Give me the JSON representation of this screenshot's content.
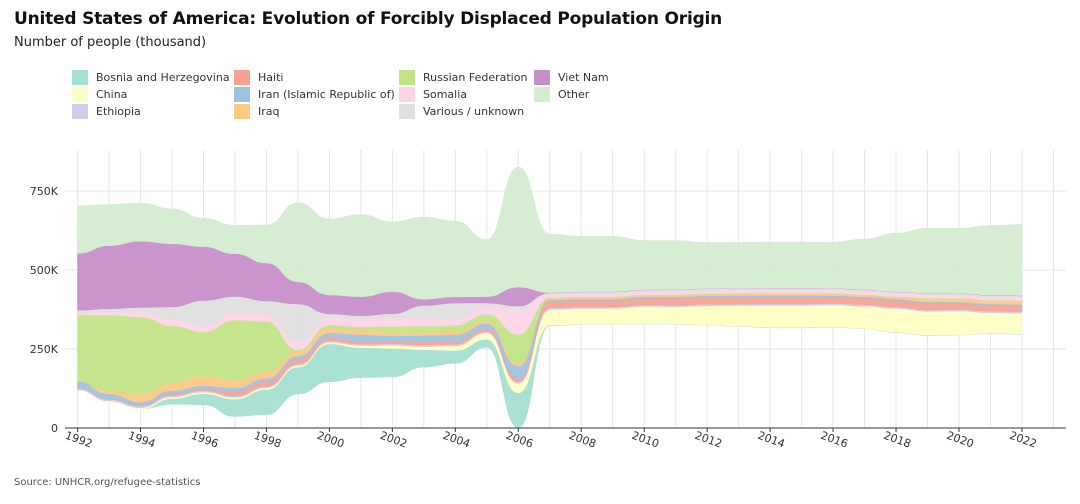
{
  "header": {
    "title": "United States of America:  Evolution of Forcibly Displaced Population Origin",
    "subtitle": "Number of people (thousand)"
  },
  "footer": {
    "source": "Source: UNHCR.org/refugee-statistics"
  },
  "chart_data": {
    "type": "area",
    "stacked": true,
    "streamgraph": true,
    "grid": true,
    "legend_position": "top",
    "x": [
      1992,
      1993,
      1994,
      1995,
      1996,
      1997,
      1998,
      1999,
      2000,
      2001,
      2002,
      2003,
      2004,
      2005,
      2006,
      2007,
      2008,
      2009,
      2010,
      2011,
      2012,
      2013,
      2014,
      2015,
      2016,
      2017,
      2018,
      2019,
      2020,
      2021,
      2022
    ],
    "x_tick_labels": [
      "1992",
      "1994",
      "1996",
      "1998",
      "2000",
      "2002",
      "2004",
      "2006",
      "2008",
      "2010",
      "2012",
      "2014",
      "2016",
      "2018",
      "2020",
      "2022"
    ],
    "y_tick_labels": [
      "0",
      "250K",
      "500K",
      "750K"
    ],
    "y_ticks": [
      0,
      250000,
      500000,
      750000
    ],
    "ylim": [
      0,
      880000
    ],
    "xlim": [
      1991.6,
      2023.4
    ],
    "series": [
      {
        "name": "Bosnia and Herzegovina",
        "color": "#a6dfd3",
        "values": [
          0,
          0,
          0,
          18000,
          35000,
          55000,
          80000,
          85000,
          120000,
          95000,
          90000,
          55000,
          40000,
          25000,
          110000,
          2000,
          1000,
          1000,
          1000,
          1000,
          1000,
          1000,
          1000,
          1000,
          1000,
          1000,
          1000,
          1000,
          1000,
          1000,
          1000
        ]
      },
      {
        "name": "China",
        "color": "#ffffc4",
        "values": [
          0,
          3000,
          5000,
          5000,
          5000,
          5000,
          5000,
          5000,
          5000,
          6000,
          10000,
          10000,
          15000,
          20000,
          30000,
          50000,
          50000,
          50000,
          55000,
          55000,
          60000,
          65000,
          70000,
          70000,
          70000,
          70000,
          75000,
          75000,
          75000,
          65000,
          65000
        ]
      },
      {
        "name": "Ethiopia",
        "color": "#d0cbe6",
        "values": [
          5000,
          5000,
          5000,
          5000,
          5000,
          5000,
          5000,
          5000,
          5000,
          5000,
          5000,
          5000,
          5000,
          5000,
          5000,
          5000,
          5000,
          5000,
          5000,
          5000,
          5000,
          5000,
          5000,
          5000,
          5000,
          5000,
          5000,
          5000,
          5000,
          5000,
          5000
        ]
      },
      {
        "name": "Haiti",
        "color": "#f9a293",
        "values": [
          2000,
          2000,
          2000,
          5000,
          5000,
          15000,
          15000,
          15000,
          10000,
          10000,
          10000,
          10000,
          10000,
          10000,
          10000,
          20000,
          20000,
          20000,
          20000,
          22000,
          22000,
          22000,
          22000,
          22000,
          20000,
          20000,
          20000,
          20000,
          18000,
          18000,
          18000
        ]
      },
      {
        "name": "Iran (Islamic Republic of)",
        "color": "#9dc3e3",
        "values": [
          20000,
          15000,
          10000,
          10000,
          10000,
          10000,
          10000,
          10000,
          15000,
          20000,
          15000,
          20000,
          20000,
          15000,
          40000,
          5000,
          5000,
          5000,
          5000,
          5000,
          5000,
          5000,
          5000,
          5000,
          5000,
          5000,
          5000,
          5000,
          5000,
          5000,
          5000
        ]
      },
      {
        "name": "Iraq",
        "color": "#fdc986",
        "values": [
          0,
          10000,
          25000,
          25000,
          30000,
          25000,
          20000,
          15000,
          15000,
          15000,
          10000,
          10000,
          10000,
          10000,
          10000,
          5000,
          5000,
          5000,
          5000,
          5000,
          5000,
          5000,
          5000,
          5000,
          5000,
          5000,
          5000,
          10000,
          10000,
          10000,
          10000
        ]
      },
      {
        "name": "Russian Federation",
        "color": "#c2e486",
        "values": [
          210000,
          240000,
          245000,
          180000,
          140000,
          190000,
          160000,
          5000,
          10000,
          10000,
          20000,
          20000,
          20000,
          20000,
          90000,
          2000,
          2000,
          2000,
          2000,
          2000,
          2000,
          2000,
          2000,
          2000,
          2000,
          2000,
          2000,
          2000,
          2000,
          2000,
          2000
        ]
      },
      {
        "name": "Somalia",
        "color": "#fcd5e6",
        "values": [
          5000,
          10000,
          15000,
          20000,
          20000,
          25000,
          25000,
          25000,
          25000,
          25000,
          30000,
          25000,
          20000,
          25000,
          80000,
          10000,
          10000,
          10000,
          10000,
          10000,
          10000,
          10000,
          10000,
          10000,
          10000,
          10000,
          10000,
          10000,
          10000,
          10000,
          10000
        ]
      },
      {
        "name": "Various / unknown",
        "color": "#dfdfdf",
        "values": [
          10000,
          10000,
          15000,
          40000,
          80000,
          50000,
          40000,
          120000,
          10000,
          10000,
          10000,
          40000,
          50000,
          10000,
          10000,
          5000,
          5000,
          5000,
          5000,
          5000,
          5000,
          5000,
          5000,
          5000,
          5000,
          5000,
          5000,
          5000,
          5000,
          5000,
          5000
        ]
      },
      {
        "name": "Viet Nam",
        "color": "#c78fc9",
        "values": [
          180000,
          200000,
          210000,
          200000,
          170000,
          135000,
          120000,
          70000,
          60000,
          60000,
          70000,
          20000,
          20000,
          20000,
          60000,
          1000,
          1000,
          1000,
          1000,
          1000,
          1000,
          1000,
          1000,
          1000,
          1000,
          1000,
          1000,
          1000,
          1000,
          1000,
          1000
        ]
      },
      {
        "name": "Other",
        "color": "#d5ecd1",
        "values": [
          150000,
          130000,
          120000,
          110000,
          90000,
          90000,
          120000,
          250000,
          240000,
          260000,
          220000,
          260000,
          240000,
          180000,
          380000,
          185000,
          175000,
          175000,
          155000,
          155000,
          145000,
          145000,
          145000,
          145000,
          145000,
          160000,
          185000,
          205000,
          205000,
          220000,
          225000
        ]
      }
    ]
  }
}
